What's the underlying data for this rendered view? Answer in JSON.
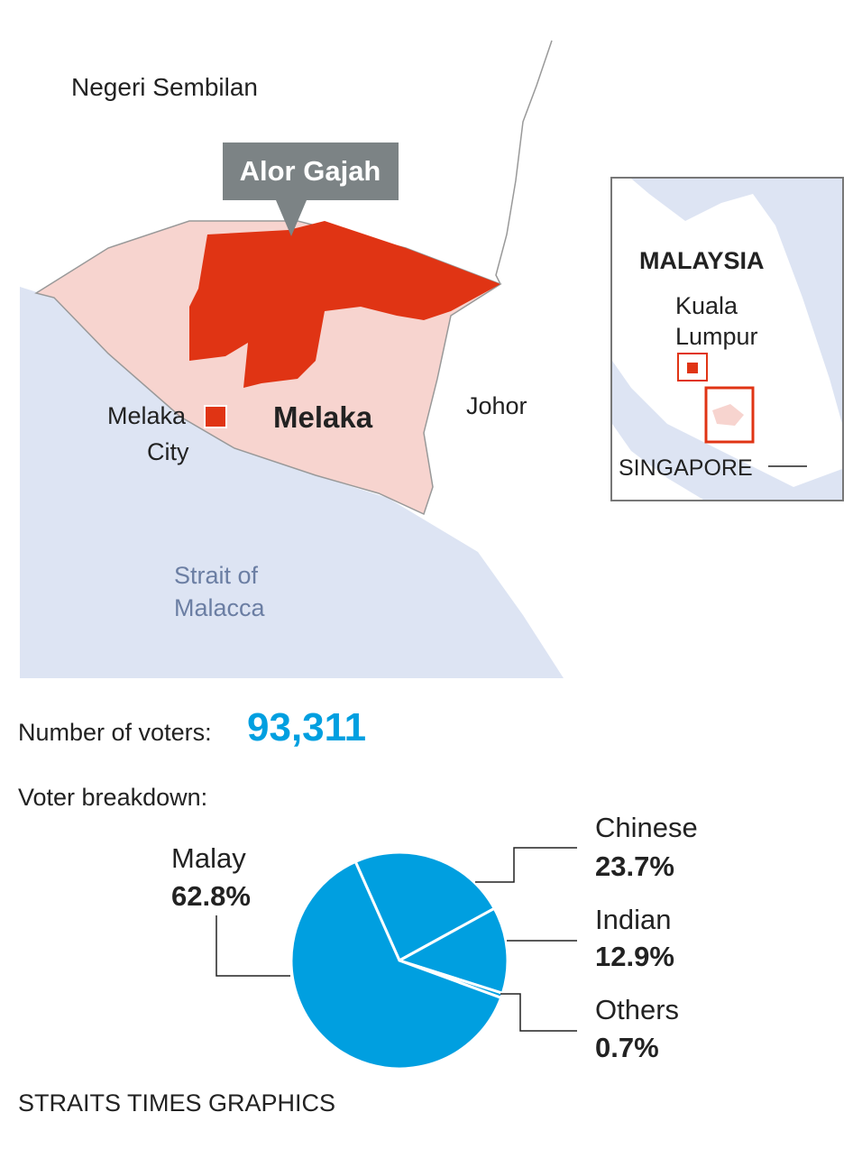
{
  "map": {
    "region": "Negeri Sembilan",
    "callout": "Alor Gajah",
    "city_line1": "Melaka",
    "city_line2": "City",
    "state": "Melaka",
    "neighbour": "Johor",
    "sea_line1": "Strait of",
    "sea_line2": "Malacca",
    "inset": {
      "country": "MALAYSIA",
      "capital_line1": "Kuala",
      "capital_line2": "Lumpur",
      "singapore": "SINGAPORE"
    }
  },
  "voters": {
    "label": "Number of voters:",
    "value": "93,311"
  },
  "chart_data": {
    "type": "pie",
    "title": "Voter breakdown:",
    "categories": [
      "Malay",
      "Chinese",
      "Indian",
      "Others"
    ],
    "values": [
      62.8,
      23.7,
      12.9,
      0.7
    ],
    "value_labels": [
      "62.8%",
      "23.7%",
      "12.9%",
      "0.7%"
    ],
    "color": "#009fe0"
  },
  "source": "STRAITS TIMES GRAPHICS"
}
